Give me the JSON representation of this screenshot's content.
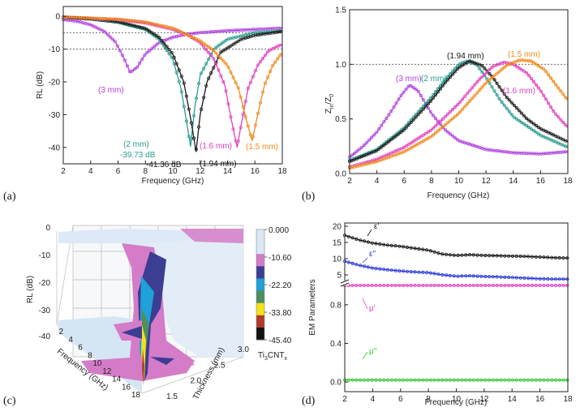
{
  "figure_labels": [
    "(a)",
    "(b)",
    "(c)",
    "(d)"
  ],
  "chart_data": [
    {
      "panel": "(a)",
      "type": "line",
      "xlabel": "Frequency (GHz)",
      "ylabel": "RL (dB)",
      "xlim": [
        2,
        18
      ],
      "ylim": [
        -45,
        3
      ],
      "xticks": [
        2,
        4,
        6,
        8,
        10,
        12,
        14,
        16,
        18
      ],
      "yticks": [
        0,
        -10,
        -20,
        -30,
        -40
      ],
      "ytick_labels": [
        "0",
        "-10",
        "-20",
        "-30",
        "-40"
      ],
      "reference_lines": [
        -5,
        -10
      ],
      "series": [
        {
          "name": "3 mm",
          "color": "#b040e0",
          "points": [
            [
              2,
              -1
            ],
            [
              3,
              -1.5
            ],
            [
              4,
              -2.6
            ],
            [
              5,
              -4.6
            ],
            [
              5.8,
              -7.8
            ],
            [
              6.4,
              -12.5
            ],
            [
              6.9,
              -17.2
            ],
            [
              7.4,
              -15.5
            ],
            [
              8,
              -11.5
            ],
            [
              9,
              -8
            ],
            [
              10,
              -6.4
            ],
            [
              11,
              -5.5
            ],
            [
              12,
              -5
            ],
            [
              14,
              -4.4
            ],
            [
              16,
              -4
            ],
            [
              18,
              -3.6
            ]
          ]
        },
        {
          "name": "2 mm",
          "color": "#2a9d8f",
          "points": [
            [
              2,
              -0.3
            ],
            [
              4,
              -0.8
            ],
            [
              6,
              -1.8
            ],
            [
              8,
              -4
            ],
            [
              9,
              -7
            ],
            [
              10,
              -13
            ],
            [
              10.6,
              -22
            ],
            [
              11,
              -32
            ],
            [
              11.3,
              -39.73
            ],
            [
              11.6,
              -28
            ],
            [
              12,
              -18
            ],
            [
              13,
              -10
            ],
            [
              14,
              -7
            ],
            [
              16,
              -5
            ],
            [
              18,
              -4.4
            ]
          ]
        },
        {
          "name": "1.94 mm",
          "color": "#1a1a1a",
          "points": [
            [
              2,
              -0.3
            ],
            [
              4,
              -0.8
            ],
            [
              6,
              -1.7
            ],
            [
              8,
              -3.7
            ],
            [
              9,
              -6.4
            ],
            [
              10,
              -11.5
            ],
            [
              10.8,
              -20
            ],
            [
              11.3,
              -31
            ],
            [
              11.7,
              -41.36
            ],
            [
              12,
              -30
            ],
            [
              12.5,
              -20
            ],
            [
              13.5,
              -11
            ],
            [
              15,
              -7
            ],
            [
              16,
              -5.8
            ],
            [
              18,
              -4.6
            ]
          ]
        },
        {
          "name": "1.6 mm",
          "color": "#e040c0",
          "points": [
            [
              2,
              -0.2
            ],
            [
              6,
              -1
            ],
            [
              8,
              -2
            ],
            [
              10,
              -4
            ],
            [
              11,
              -5.5
            ],
            [
              12,
              -8
            ],
            [
              13,
              -13
            ],
            [
              13.8,
              -21
            ],
            [
              14.3,
              -32
            ],
            [
              14.7,
              -40
            ],
            [
              15,
              -33
            ],
            [
              15.5,
              -22
            ],
            [
              16.2,
              -15
            ],
            [
              17,
              -10.5
            ],
            [
              18,
              -8.5
            ]
          ]
        },
        {
          "name": "1.5 mm",
          "color": "#f08a1c",
          "points": [
            [
              2,
              -0.2
            ],
            [
              6,
              -0.9
            ],
            [
              8,
              -1.8
            ],
            [
              10,
              -3.6
            ],
            [
              12,
              -7.5
            ],
            [
              13,
              -10.5
            ],
            [
              14,
              -15
            ],
            [
              14.8,
              -22
            ],
            [
              15.4,
              -32
            ],
            [
              15.8,
              -38
            ],
            [
              16.2,
              -30
            ],
            [
              16.7,
              -21
            ],
            [
              17.3,
              -15
            ],
            [
              18,
              -11
            ]
          ]
        }
      ],
      "annotations": [
        "(3 mm)",
        "(2 mm)",
        "-39.73 dB",
        "-41.36 dB",
        "(1.94 mm)",
        "(1.6 mm)",
        "(1.5 mm)"
      ]
    },
    {
      "panel": "(b)",
      "type": "line",
      "xlabel": "Frequency (GHz)",
      "ylabel": "Zin/Z0",
      "ylabel_main": "Z",
      "ylabel_sub1": "in",
      "ylabel_mid": "/Z",
      "ylabel_sub2": "0",
      "xlim": [
        2,
        18
      ],
      "ylim": [
        0,
        1.5
      ],
      "xticks": [
        2,
        4,
        6,
        8,
        10,
        12,
        14,
        16,
        18
      ],
      "yticks": [
        0.0,
        0.5,
        1.0,
        1.5
      ],
      "ytick_labels": [
        "0.0",
        "0.5",
        "1.0",
        "1.5"
      ],
      "reference_lines": [
        1.0
      ],
      "series": [
        {
          "name": "3 mm",
          "color": "#b040e0",
          "points": [
            [
              2,
              0.15
            ],
            [
              3,
              0.25
            ],
            [
              4,
              0.38
            ],
            [
              5,
              0.56
            ],
            [
              5.8,
              0.72
            ],
            [
              6.4,
              0.81
            ],
            [
              7,
              0.76
            ],
            [
              8,
              0.55
            ],
            [
              9,
              0.4
            ],
            [
              10,
              0.3
            ],
            [
              12,
              0.22
            ],
            [
              14,
              0.19
            ],
            [
              16,
              0.18
            ],
            [
              18,
              0.2
            ]
          ]
        },
        {
          "name": "2 mm",
          "color": "#2a9d8f",
          "points": [
            [
              2,
              0.12
            ],
            [
              4,
              0.22
            ],
            [
              6,
              0.42
            ],
            [
              8,
              0.7
            ],
            [
              9,
              0.86
            ],
            [
              10,
              1.0
            ],
            [
              10.6,
              1.03
            ],
            [
              11.3,
              1.0
            ],
            [
              12,
              0.88
            ],
            [
              13,
              0.68
            ],
            [
              14,
              0.52
            ],
            [
              16,
              0.35
            ],
            [
              18,
              0.24
            ]
          ]
        },
        {
          "name": "1.94 mm",
          "color": "#1a1a1a",
          "points": [
            [
              2,
              0.11
            ],
            [
              4,
              0.21
            ],
            [
              6,
              0.4
            ],
            [
              8,
              0.67
            ],
            [
              9,
              0.83
            ],
            [
              10,
              0.97
            ],
            [
              10.8,
              1.03
            ],
            [
              11.7,
              0.99
            ],
            [
              12.5,
              0.88
            ],
            [
              13.5,
              0.7
            ],
            [
              15,
              0.5
            ],
            [
              16,
              0.41
            ],
            [
              18,
              0.29
            ]
          ]
        },
        {
          "name": "1.6 mm",
          "color": "#e040c0",
          "points": [
            [
              2,
              0.06
            ],
            [
              4,
              0.13
            ],
            [
              6,
              0.24
            ],
            [
              8,
              0.4
            ],
            [
              10,
              0.64
            ],
            [
              11.5,
              0.86
            ],
            [
              12.5,
              0.98
            ],
            [
              13.3,
              1.02
            ],
            [
              14,
              1.0
            ],
            [
              15,
              0.92
            ],
            [
              16,
              0.76
            ],
            [
              17,
              0.56
            ],
            [
              18,
              0.42
            ]
          ]
        },
        {
          "name": "1.5 mm",
          "color": "#f08a1c",
          "points": [
            [
              2,
              0.05
            ],
            [
              4,
              0.11
            ],
            [
              6,
              0.2
            ],
            [
              8,
              0.34
            ],
            [
              10,
              0.55
            ],
            [
              12,
              0.83
            ],
            [
              13.5,
              0.99
            ],
            [
              14.5,
              1.04
            ],
            [
              15.3,
              1.03
            ],
            [
              16.3,
              0.95
            ],
            [
              17.2,
              0.8
            ],
            [
              18,
              0.67
            ]
          ]
        }
      ],
      "annotations": [
        "(1.94 mm)",
        "(1.5 mm)",
        "(3 mm)",
        "(2 mm)",
        "(1.6 mm)"
      ]
    },
    {
      "panel": "(c)",
      "type": "surface3d",
      "zlabel": "RL (dB)",
      "xlabel": "Frequency (GHz)",
      "ylabel": "Thickness (mm)",
      "zticks": [
        "0",
        "-10",
        "-20",
        "-30",
        "-40"
      ],
      "freq_ticks": [
        "2",
        "4",
        "6",
        "8",
        "10",
        "12",
        "14",
        "16",
        "18"
      ],
      "thick_ticks": [
        "1.5",
        "2.0",
        "2.5",
        "3.0"
      ],
      "colorbar": {
        "title": "Ti3CNTx",
        "title_main": "Ti",
        "title_s1": "3",
        "title_mid": "CNT",
        "title_s2": "x",
        "labels": [
          "0.000",
          "-10.60",
          "-22.20",
          "-33.80",
          "-45.40"
        ],
        "colors": [
          "#dce8f5",
          "#d9e8f6",
          "#d57bc8",
          "#3b3d93",
          "#1ea0d8",
          "#4e8e5e",
          "#f2e21a",
          "#b33a2a",
          "#111111"
        ]
      }
    },
    {
      "panel": "(d)",
      "type": "line",
      "xlabel": "Frequency (GHz)",
      "ylabel": "EM Parameters",
      "xlim": [
        2,
        18
      ],
      "xticks": [
        2,
        4,
        6,
        8,
        10,
        12,
        14,
        16,
        18
      ],
      "upper_yticks": [
        5,
        10,
        15,
        20
      ],
      "upper_ylim": [
        3,
        21
      ],
      "lower_yticks": [
        0.0,
        0.4,
        0.8
      ],
      "lower_ytick_labels": [
        "0.0",
        "0.4",
        "0.8"
      ],
      "lower_ylim": [
        -0.1,
        1.0
      ],
      "series": [
        {
          "name": "ε'",
          "color": "#111111",
          "axis": "upper",
          "points": [
            [
              2,
              17.2
            ],
            [
              3,
              15.8
            ],
            [
              4,
              14.8
            ],
            [
              5,
              14.2
            ],
            [
              6,
              13.8
            ],
            [
              7,
              13.2
            ],
            [
              8,
              12.6
            ],
            [
              9,
              11.4
            ],
            [
              10,
              11.0
            ],
            [
              11,
              11.2
            ],
            [
              12,
              11.0
            ],
            [
              13,
              10.9
            ],
            [
              14,
              10.8
            ],
            [
              15,
              10.7
            ],
            [
              16,
              10.5
            ],
            [
              17,
              10.3
            ],
            [
              18,
              10.2
            ]
          ]
        },
        {
          "name": "ε\"",
          "color": "#2433d6",
          "axis": "upper",
          "points": [
            [
              2,
              9.2
            ],
            [
              3,
              8.0
            ],
            [
              4,
              7.1
            ],
            [
              5,
              6.6
            ],
            [
              6,
              6.2
            ],
            [
              7,
              5.9
            ],
            [
              8,
              5.7
            ],
            [
              9,
              5.0
            ],
            [
              10,
              4.6
            ],
            [
              11,
              4.7
            ],
            [
              12,
              4.5
            ],
            [
              13,
              4.4
            ],
            [
              14,
              4.2
            ],
            [
              15,
              4.0
            ],
            [
              16,
              3.8
            ],
            [
              17,
              3.7
            ],
            [
              18,
              3.7
            ]
          ]
        },
        {
          "name": "μ'",
          "color": "#e040c0",
          "axis": "lower",
          "points": [
            [
              2,
              1.0
            ],
            [
              4,
              1.0
            ],
            [
              6,
              1.0
            ],
            [
              8,
              1.0
            ],
            [
              10,
              1.0
            ],
            [
              12,
              1.0
            ],
            [
              14,
              1.0
            ],
            [
              16,
              1.0
            ],
            [
              18,
              1.0
            ]
          ]
        },
        {
          "name": "μ\"",
          "color": "#2ec82e",
          "axis": "lower",
          "points": [
            [
              2,
              0.02
            ],
            [
              4,
              0.02
            ],
            [
              6,
              0.02
            ],
            [
              8,
              0.02
            ],
            [
              10,
              0.02
            ],
            [
              12,
              0.02
            ],
            [
              14,
              0.02
            ],
            [
              16,
              0.02
            ],
            [
              18,
              0.02
            ]
          ]
        }
      ],
      "annotations": [
        "ε'",
        "ε\"",
        "μ'",
        "μ\""
      ]
    }
  ]
}
